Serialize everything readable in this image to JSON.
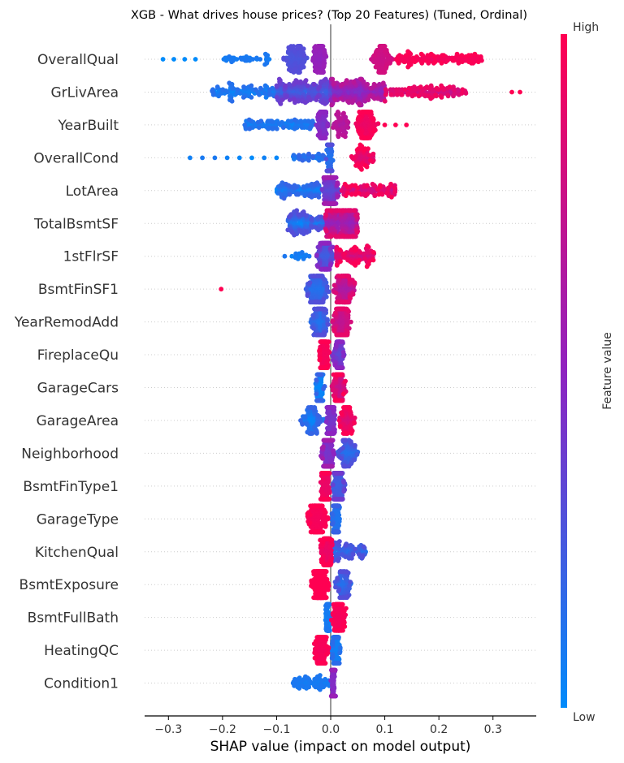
{
  "chart_data": {
    "type": "scatter",
    "subtype": "shap-beeswarm",
    "title": "XGB - What drives house prices? (Top 20 Features) (Tuned, Ordinal)",
    "xlabel": "SHAP value (impact on model output)",
    "xlim": [
      -0.344,
      0.38
    ],
    "xticks": [
      -0.3,
      -0.2,
      -0.1,
      0.0,
      0.1,
      0.2,
      0.3
    ],
    "xtick_labels": [
      "−0.3",
      "−0.2",
      "−0.1",
      "0.0",
      "0.1",
      "0.2",
      "0.3"
    ],
    "grid": "dotted per-feature rows",
    "colorbar": {
      "label": "Feature value",
      "high": "High",
      "low": "Low",
      "colors": [
        "#008bfb",
        "#8f23c0",
        "#ff0052"
      ]
    },
    "features": [
      {
        "name": "OverallQual",
        "clusters": [
          [
            -0.31,
            -0.25,
            4,
            0,
            0
          ],
          [
            -0.2,
            -0.11,
            40,
            0.05,
            0.1
          ],
          [
            -0.09,
            -0.04,
            120,
            0.25,
            0.3
          ],
          [
            -0.035,
            -0.005,
            110,
            0.5,
            0.55
          ],
          [
            0.07,
            0.12,
            120,
            0.75,
            0.8
          ],
          [
            0.12,
            0.28,
            150,
            0.9,
            1
          ]
        ]
      },
      {
        "name": "GrLivArea",
        "clusters": [
          [
            -0.22,
            -0.1,
            120,
            0,
            0.15
          ],
          [
            -0.1,
            0,
            250,
            0.15,
            0.4
          ],
          [
            0,
            0.1,
            250,
            0.4,
            0.7
          ],
          [
            0.1,
            0.25,
            150,
            0.7,
            0.95
          ],
          [
            0.335,
            0.35,
            2,
            1,
            1
          ]
        ]
      },
      {
        "name": "YearBuilt",
        "clusters": [
          [
            -0.16,
            -0.03,
            120,
            0,
            0.15
          ],
          [
            -0.03,
            0,
            100,
            0.4,
            0.5
          ],
          [
            0,
            0.04,
            60,
            0.6,
            0.7
          ],
          [
            0.04,
            0.09,
            150,
            0.9,
            1
          ],
          [
            0.1,
            0.14,
            3,
            1,
            1
          ]
        ]
      },
      {
        "name": "OverallCond",
        "clusters": [
          [
            -0.26,
            -0.1,
            8,
            0,
            0.1
          ],
          [
            -0.07,
            -0.01,
            40,
            0,
            0.2
          ],
          [
            -0.01,
            0.005,
            150,
            0.1,
            0.3
          ],
          [
            0.03,
            0.09,
            80,
            0.8,
            1
          ]
        ]
      },
      {
        "name": "LotArea",
        "clusters": [
          [
            -0.1,
            -0.02,
            120,
            0,
            0.2
          ],
          [
            -0.02,
            0.02,
            200,
            0.3,
            0.6
          ],
          [
            0.02,
            0.12,
            120,
            0.7,
            1
          ]
        ]
      },
      {
        "name": "TotalBsmtSF",
        "clusters": [
          [
            -0.08,
            -0.01,
            150,
            0,
            0.3
          ],
          [
            -0.01,
            0.05,
            300,
            0.5,
            0.9
          ]
        ]
      },
      {
        "name": "1stFlrSF",
        "clusters": [
          [
            -0.09,
            -0.03,
            20,
            0,
            0.1
          ],
          [
            -0.03,
            0.01,
            200,
            0.2,
            0.5
          ],
          [
            0.01,
            0.08,
            120,
            0.7,
            1
          ]
        ]
      },
      {
        "name": "BsmtFinSF1",
        "clusters": [
          [
            -0.205,
            -0.2,
            1,
            1,
            1
          ],
          [
            -0.05,
            0,
            200,
            0.1,
            0.3
          ],
          [
            0,
            0.05,
            200,
            0.6,
            0.9
          ]
        ]
      },
      {
        "name": "YearRemodAdd",
        "clusters": [
          [
            -0.04,
            0,
            200,
            0.1,
            0.3
          ],
          [
            0,
            0.04,
            250,
            0.7,
            0.9
          ]
        ]
      },
      {
        "name": "FireplaceQu",
        "clusters": [
          [
            -0.025,
            0,
            250,
            0.95,
            1
          ],
          [
            0,
            0.03,
            100,
            0.3,
            0.5
          ]
        ]
      },
      {
        "name": "GarageCars",
        "clusters": [
          [
            -0.03,
            -0.01,
            150,
            0,
            0.2
          ],
          [
            0,
            0.03,
            200,
            0.7,
            1
          ]
        ]
      },
      {
        "name": "GarageArea",
        "clusters": [
          [
            -0.06,
            -0.01,
            100,
            0,
            0.2
          ],
          [
            -0.01,
            0.01,
            200,
            0.4,
            0.5
          ],
          [
            0.01,
            0.05,
            100,
            0.8,
            1
          ]
        ]
      },
      {
        "name": "Neighborhood",
        "clusters": [
          [
            -0.02,
            0.01,
            250,
            0.4,
            0.6
          ],
          [
            0.01,
            0.055,
            100,
            0.1,
            0.3
          ]
        ]
      },
      {
        "name": "BsmtFinType1",
        "clusters": [
          [
            -0.02,
            0,
            200,
            0.9,
            1
          ],
          [
            0,
            0.03,
            200,
            0.2,
            0.4
          ]
        ]
      },
      {
        "name": "GarageType",
        "clusters": [
          [
            -0.05,
            0,
            200,
            0.95,
            1
          ],
          [
            0,
            0.02,
            150,
            0.1,
            0.2
          ]
        ]
      },
      {
        "name": "KitchenQual",
        "clusters": [
          [
            -0.02,
            0.005,
            250,
            0.9,
            1
          ],
          [
            0.005,
            0.065,
            100,
            0.1,
            0.3
          ]
        ]
      },
      {
        "name": "BsmtExposure",
        "clusters": [
          [
            -0.04,
            0,
            300,
            1,
            1
          ],
          [
            0,
            0.045,
            100,
            0.1,
            0.3
          ]
        ]
      },
      {
        "name": "BsmtFullBath",
        "clusters": [
          [
            -0.01,
            0,
            250,
            0.05,
            0.1
          ],
          [
            0,
            0.03,
            150,
            0.95,
            1
          ]
        ]
      },
      {
        "name": "HeatingQC",
        "clusters": [
          [
            -0.035,
            0,
            200,
            0.95,
            1
          ],
          [
            0,
            0.02,
            200,
            0.05,
            0.15
          ]
        ]
      },
      {
        "name": "Condition1",
        "clusters": [
          [
            -0.07,
            0,
            80,
            0.05,
            0.1
          ],
          [
            0,
            0.01,
            200,
            0.45,
            0.55
          ]
        ]
      }
    ]
  }
}
